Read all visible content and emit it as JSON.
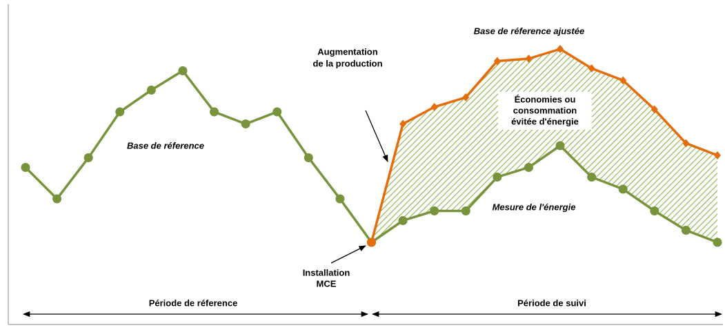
{
  "chart_data": {
    "type": "line",
    "xlim": [
      0,
      22
    ],
    "ylim": [
      0,
      100
    ],
    "series": [
      {
        "name": "Base de réference",
        "color": "#77933c",
        "marker": "circle",
        "x": [
          0,
          1,
          2,
          3,
          4,
          5,
          6,
          7,
          8,
          9,
          10,
          11
        ],
        "values": [
          45,
          32,
          49,
          68,
          77,
          85,
          68,
          63,
          68,
          49,
          32,
          14
        ]
      },
      {
        "name": "Mesure de l'énergie",
        "color": "#77933c",
        "marker": "circle",
        "x": [
          11,
          12,
          13,
          14,
          15,
          16,
          17,
          18,
          19,
          20,
          21,
          22
        ],
        "values": [
          14,
          23,
          27,
          27,
          41,
          45,
          54,
          41,
          36,
          27,
          19,
          14
        ]
      },
      {
        "name": "Base de réference ajustée",
        "color": "#e46c0a",
        "marker": "diamond",
        "x": [
          11,
          12,
          13,
          14,
          15,
          16,
          17,
          18,
          19,
          20,
          21,
          22
        ],
        "values": [
          14,
          63,
          70,
          74,
          89,
          90,
          94,
          86,
          81,
          69,
          55,
          50
        ]
      }
    ],
    "annotations": {
      "production": [
        "Augmentation",
        "de la production"
      ],
      "savings": [
        "Économies ou",
        "consommation",
        "évitée d'énergie"
      ],
      "installation": [
        "Installation",
        "MCE"
      ]
    },
    "periods": {
      "reference": "Période de réference",
      "follow_up": "Période de suivi"
    }
  }
}
